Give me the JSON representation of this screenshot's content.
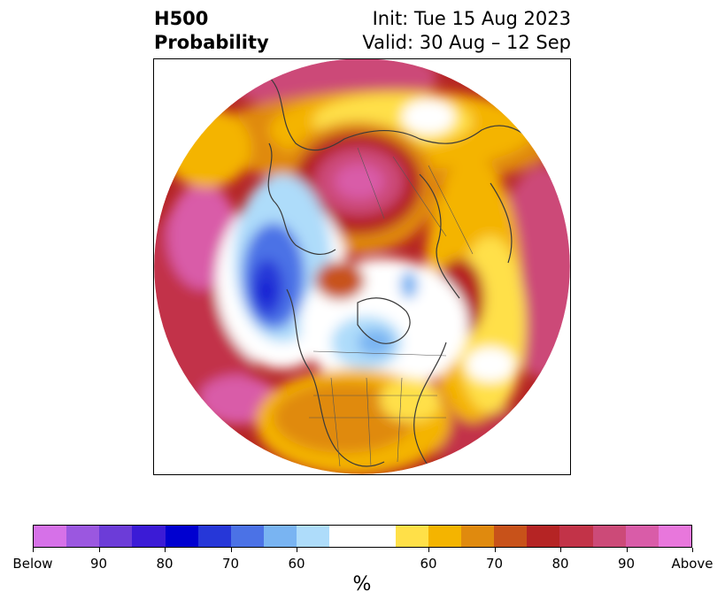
{
  "title": {
    "left_line1": "H500",
    "left_line2": "Probability",
    "right_line1": "Init: Tue 15 Aug 2023",
    "right_line2": "Valid: 30 Aug – 12 Sep"
  },
  "colorbar": {
    "unit": "%",
    "colors": [
      "#d671e8",
      "#9b57e0",
      "#6c3cd8",
      "#3b1bd6",
      "#0000d0",
      "#2637d8",
      "#4b72e6",
      "#79b4f2",
      "#aedcfa",
      "#ffffff",
      "#ffe048",
      "#f4b400",
      "#e08a0e",
      "#c8521a",
      "#b52424",
      "#c23348",
      "#cc4a78",
      "#d95ca8",
      "#e877dc"
    ],
    "tick_labels": [
      "Below",
      "90",
      "80",
      "70",
      "60",
      "60",
      "70",
      "80",
      "90",
      "Above"
    ]
  },
  "map": {
    "projection": "north-polar-stereographic",
    "shading": "probability-percent"
  }
}
